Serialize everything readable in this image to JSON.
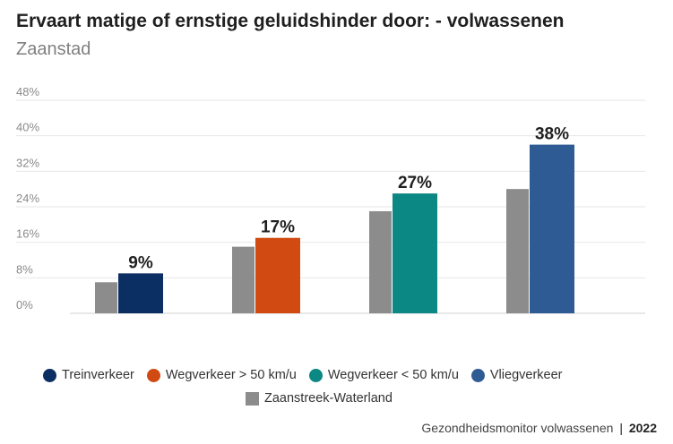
{
  "chart_data": {
    "type": "bar",
    "title": "Ervaart matige of ernstige geluidshinder door: - volwassenen",
    "subtitle": "Zaanstad",
    "categories": [
      "Treinverkeer",
      "Wegverkeer > 50 km/u",
      "Wegverkeer < 50 km/u",
      "Vliegverkeer"
    ],
    "series": [
      {
        "name": "Zaanstad",
        "values": [
          9,
          17,
          27,
          38
        ],
        "labels": [
          "9%",
          "17%",
          "27%",
          "38%"
        ],
        "colors": [
          "#0b2f63",
          "#d04a12",
          "#0b8784",
          "#2f5b94"
        ]
      },
      {
        "name": "Zaanstreek-Waterland",
        "values": [
          7,
          15,
          23,
          28
        ],
        "color": "#8c8c8c"
      }
    ],
    "ylim": [
      0,
      48
    ],
    "yticks": [
      "0%",
      "8%",
      "16%",
      "24%",
      "32%",
      "40%",
      "48%"
    ],
    "ytick_values": [
      0,
      8,
      16,
      24,
      32,
      40,
      48
    ],
    "grid": true,
    "legend": {
      "position": "bottom",
      "items": [
        {
          "label": "Treinverkeer",
          "color": "#0b2f63",
          "shape": "circle"
        },
        {
          "label": "Wegverkeer > 50 km/u",
          "color": "#d04a12",
          "shape": "circle"
        },
        {
          "label": "Wegverkeer < 50 km/u",
          "color": "#0b8784",
          "shape": "circle"
        },
        {
          "label": "Vliegverkeer",
          "color": "#2f5b94",
          "shape": "circle"
        },
        {
          "label": "Zaanstreek-Waterland",
          "color": "#8c8c8c",
          "shape": "square"
        }
      ]
    }
  },
  "footer": {
    "source": "Gezondheidsmonitor volwassenen",
    "separator": "|",
    "year": "2022"
  }
}
